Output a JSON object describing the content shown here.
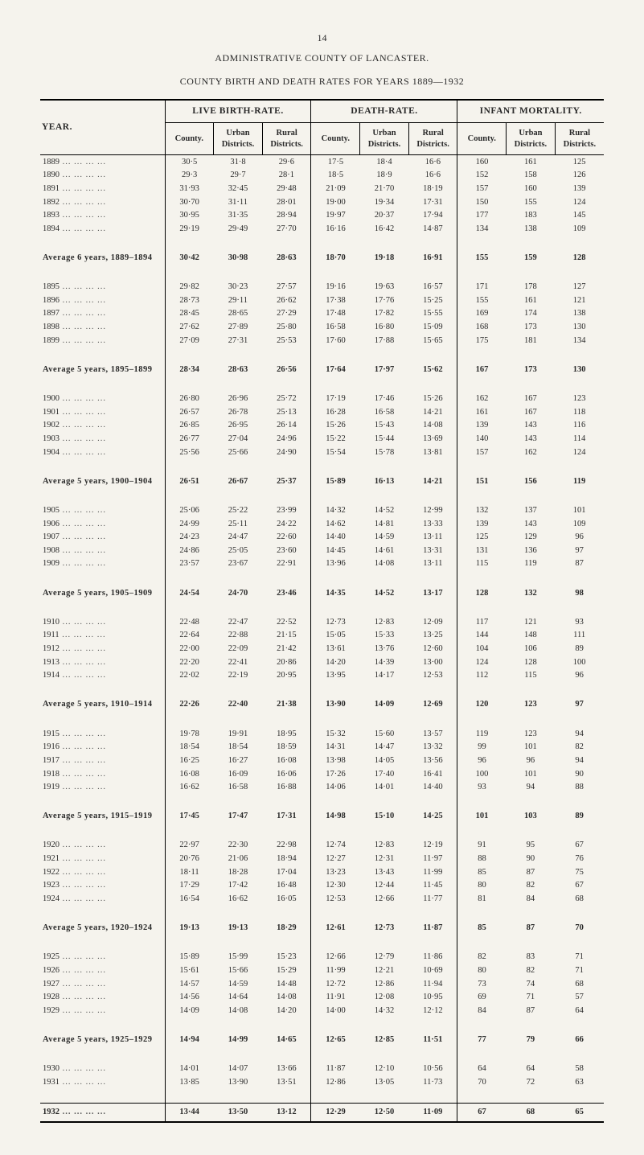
{
  "page_number": "14",
  "header_line1": "ADMINISTRATIVE COUNTY OF LANCASTER.",
  "header_line2": "COUNTY BIRTH AND DEATH RATES FOR YEARS 1889—1932",
  "col_year": "YEAR.",
  "groups": {
    "live_birth": "LIVE BIRTH-RATE.",
    "death": "DEATH-RATE.",
    "infant": "INFANT MORTALITY."
  },
  "subcols": {
    "county": "County.",
    "urban": "Urban Districts.",
    "rural": "Rural Districts."
  },
  "sections": [
    {
      "rows": [
        {
          "y": "1889",
          "v": [
            "30·5",
            "31·8",
            "29·6",
            "17·5",
            "18·4",
            "16·6",
            "160",
            "161",
            "125"
          ]
        },
        {
          "y": "1890",
          "v": [
            "29·3",
            "29·7",
            "28·1",
            "18·5",
            "18·9",
            "16·6",
            "152",
            "158",
            "126"
          ]
        },
        {
          "y": "1891",
          "v": [
            "31·93",
            "32·45",
            "29·48",
            "21·09",
            "21·70",
            "18·19",
            "157",
            "160",
            "139"
          ]
        },
        {
          "y": "1892",
          "v": [
            "30·70",
            "31·11",
            "28·01",
            "19·00",
            "19·34",
            "17·31",
            "150",
            "155",
            "124"
          ]
        },
        {
          "y": "1893",
          "v": [
            "30·95",
            "31·35",
            "28·94",
            "19·97",
            "20·37",
            "17·94",
            "177",
            "183",
            "145"
          ]
        },
        {
          "y": "1894",
          "v": [
            "29·19",
            "29·49",
            "27·70",
            "16·16",
            "16·42",
            "14·87",
            "134",
            "138",
            "109"
          ]
        }
      ],
      "avg": {
        "label": "Average 6 years, 1889–1894",
        "v": [
          "30·42",
          "30·98",
          "28·63",
          "18·70",
          "19·18",
          "16·91",
          "155",
          "159",
          "128"
        ]
      }
    },
    {
      "rows": [
        {
          "y": "1895",
          "v": [
            "29·82",
            "30·23",
            "27·57",
            "19·16",
            "19·63",
            "16·57",
            "171",
            "178",
            "127"
          ]
        },
        {
          "y": "1896",
          "v": [
            "28·73",
            "29·11",
            "26·62",
            "17·38",
            "17·76",
            "15·25",
            "155",
            "161",
            "121"
          ]
        },
        {
          "y": "1897",
          "v": [
            "28·45",
            "28·65",
            "27·29",
            "17·48",
            "17·82",
            "15·55",
            "169",
            "174",
            "138"
          ]
        },
        {
          "y": "1898",
          "v": [
            "27·62",
            "27·89",
            "25·80",
            "16·58",
            "16·80",
            "15·09",
            "168",
            "173",
            "130"
          ]
        },
        {
          "y": "1899",
          "v": [
            "27·09",
            "27·31",
            "25·53",
            "17·60",
            "17·88",
            "15·65",
            "175",
            "181",
            "134"
          ]
        }
      ],
      "avg": {
        "label": "Average 5 years, 1895–1899",
        "v": [
          "28·34",
          "28·63",
          "26·56",
          "17·64",
          "17·97",
          "15·62",
          "167",
          "173",
          "130"
        ]
      }
    },
    {
      "rows": [
        {
          "y": "1900",
          "v": [
            "26·80",
            "26·96",
            "25·72",
            "17·19",
            "17·46",
            "15·26",
            "162",
            "167",
            "123"
          ]
        },
        {
          "y": "1901",
          "v": [
            "26·57",
            "26·78",
            "25·13",
            "16·28",
            "16·58",
            "14·21",
            "161",
            "167",
            "118"
          ]
        },
        {
          "y": "1902",
          "v": [
            "26·85",
            "26·95",
            "26·14",
            "15·26",
            "15·43",
            "14·08",
            "139",
            "143",
            "116"
          ]
        },
        {
          "y": "1903",
          "v": [
            "26·77",
            "27·04",
            "24·96",
            "15·22",
            "15·44",
            "13·69",
            "140",
            "143",
            "114"
          ]
        },
        {
          "y": "1904",
          "v": [
            "25·56",
            "25·66",
            "24·90",
            "15·54",
            "15·78",
            "13·81",
            "157",
            "162",
            "124"
          ]
        }
      ],
      "avg": {
        "label": "Average 5 years, 1900–1904",
        "v": [
          "26·51",
          "26·67",
          "25·37",
          "15·89",
          "16·13",
          "14·21",
          "151",
          "156",
          "119"
        ]
      }
    },
    {
      "rows": [
        {
          "y": "1905",
          "v": [
            "25·06",
            "25·22",
            "23·99",
            "14·32",
            "14·52",
            "12·99",
            "132",
            "137",
            "101"
          ]
        },
        {
          "y": "1906",
          "v": [
            "24·99",
            "25·11",
            "24·22",
            "14·62",
            "14·81",
            "13·33",
            "139",
            "143",
            "109"
          ]
        },
        {
          "y": "1907",
          "v": [
            "24·23",
            "24·47",
            "22·60",
            "14·40",
            "14·59",
            "13·11",
            "125",
            "129",
            "96"
          ]
        },
        {
          "y": "1908",
          "v": [
            "24·86",
            "25·05",
            "23·60",
            "14·45",
            "14·61",
            "13·31",
            "131",
            "136",
            "97"
          ]
        },
        {
          "y": "1909",
          "v": [
            "23·57",
            "23·67",
            "22·91",
            "13·96",
            "14·08",
            "13·11",
            "115",
            "119",
            "87"
          ]
        }
      ],
      "avg": {
        "label": "Average 5 years, 1905–1909",
        "v": [
          "24·54",
          "24·70",
          "23·46",
          "14·35",
          "14·52",
          "13·17",
          "128",
          "132",
          "98"
        ]
      }
    },
    {
      "rows": [
        {
          "y": "1910",
          "v": [
            "22·48",
            "22·47",
            "22·52",
            "12·73",
            "12·83",
            "12·09",
            "117",
            "121",
            "93"
          ]
        },
        {
          "y": "1911",
          "v": [
            "22·64",
            "22·88",
            "21·15",
            "15·05",
            "15·33",
            "13·25",
            "144",
            "148",
            "111"
          ]
        },
        {
          "y": "1912",
          "v": [
            "22·00",
            "22·09",
            "21·42",
            "13·61",
            "13·76",
            "12·60",
            "104",
            "106",
            "89"
          ]
        },
        {
          "y": "1913",
          "v": [
            "22·20",
            "22·41",
            "20·86",
            "14·20",
            "14·39",
            "13·00",
            "124",
            "128",
            "100"
          ]
        },
        {
          "y": "1914",
          "v": [
            "22·02",
            "22·19",
            "20·95",
            "13·95",
            "14·17",
            "12·53",
            "112",
            "115",
            "96"
          ]
        }
      ],
      "avg": {
        "label": "Average 5 years, 1910–1914",
        "v": [
          "22·26",
          "22·40",
          "21·38",
          "13·90",
          "14·09",
          "12·69",
          "120",
          "123",
          "97"
        ]
      }
    },
    {
      "rows": [
        {
          "y": "1915",
          "v": [
            "19·78",
            "19·91",
            "18·95",
            "15·32",
            "15·60",
            "13·57",
            "119",
            "123",
            "94"
          ]
        },
        {
          "y": "1916",
          "v": [
            "18·54",
            "18·54",
            "18·59",
            "14·31",
            "14·47",
            "13·32",
            "99",
            "101",
            "82"
          ]
        },
        {
          "y": "1917",
          "v": [
            "16·25",
            "16·27",
            "16·08",
            "13·98",
            "14·05",
            "13·56",
            "96",
            "96",
            "94"
          ]
        },
        {
          "y": "1918",
          "v": [
            "16·08",
            "16·09",
            "16·06",
            "17·26",
            "17·40",
            "16·41",
            "100",
            "101",
            "90"
          ]
        },
        {
          "y": "1919",
          "v": [
            "16·62",
            "16·58",
            "16·88",
            "14·06",
            "14·01",
            "14·40",
            "93",
            "94",
            "88"
          ]
        }
      ],
      "avg": {
        "label": "Average 5 years, 1915–1919",
        "v": [
          "17·45",
          "17·47",
          "17·31",
          "14·98",
          "15·10",
          "14·25",
          "101",
          "103",
          "89"
        ]
      }
    },
    {
      "rows": [
        {
          "y": "1920",
          "v": [
            "22·97",
            "22·30",
            "22·98",
            "12·74",
            "12·83",
            "12·19",
            "91",
            "95",
            "67"
          ]
        },
        {
          "y": "1921",
          "v": [
            "20·76",
            "21·06",
            "18·94",
            "12·27",
            "12·31",
            "11·97",
            "88",
            "90",
            "76"
          ]
        },
        {
          "y": "1922",
          "v": [
            "18·11",
            "18·28",
            "17·04",
            "13·23",
            "13·43",
            "11·99",
            "85",
            "87",
            "75"
          ]
        },
        {
          "y": "1923",
          "v": [
            "17·29",
            "17·42",
            "16·48",
            "12·30",
            "12·44",
            "11·45",
            "80",
            "82",
            "67"
          ]
        },
        {
          "y": "1924",
          "v": [
            "16·54",
            "16·62",
            "16·05",
            "12·53",
            "12·66",
            "11·77",
            "81",
            "84",
            "68"
          ]
        }
      ],
      "avg": {
        "label": "Average 5 years, 1920–1924",
        "v": [
          "19·13",
          "19·13",
          "18·29",
          "12·61",
          "12·73",
          "11·87",
          "85",
          "87",
          "70"
        ]
      }
    },
    {
      "rows": [
        {
          "y": "1925",
          "v": [
            "15·89",
            "15·99",
            "15·23",
            "12·66",
            "12·79",
            "11·86",
            "82",
            "83",
            "71"
          ]
        },
        {
          "y": "1926",
          "v": [
            "15·61",
            "15·66",
            "15·29",
            "11·99",
            "12·21",
            "10·69",
            "80",
            "82",
            "71"
          ]
        },
        {
          "y": "1927",
          "v": [
            "14·57",
            "14·59",
            "14·48",
            "12·72",
            "12·86",
            "11·94",
            "73",
            "74",
            "68"
          ]
        },
        {
          "y": "1928",
          "v": [
            "14·56",
            "14·64",
            "14·08",
            "11·91",
            "12·08",
            "10·95",
            "69",
            "71",
            "57"
          ]
        },
        {
          "y": "1929",
          "v": [
            "14·09",
            "14·08",
            "14·20",
            "14·00",
            "14·32",
            "12·12",
            "84",
            "87",
            "64"
          ]
        }
      ],
      "avg": {
        "label": "Average 5 years, 1925–1929",
        "v": [
          "14·94",
          "14·99",
          "14·65",
          "12·65",
          "12·85",
          "11·51",
          "77",
          "79",
          "66"
        ]
      }
    },
    {
      "rows": [
        {
          "y": "1930",
          "v": [
            "14·01",
            "14·07",
            "13·66",
            "11·87",
            "12·10",
            "10·56",
            "64",
            "64",
            "58"
          ]
        },
        {
          "y": "1931",
          "v": [
            "13·85",
            "13·90",
            "13·51",
            "12·86",
            "13·05",
            "11·73",
            "70",
            "72",
            "63"
          ]
        }
      ],
      "avg": null
    }
  ],
  "final_row": {
    "y": "1932",
    "v": [
      "13·44",
      "13·50",
      "13·12",
      "12·29",
      "12·50",
      "11·09",
      "67",
      "68",
      "65"
    ]
  }
}
